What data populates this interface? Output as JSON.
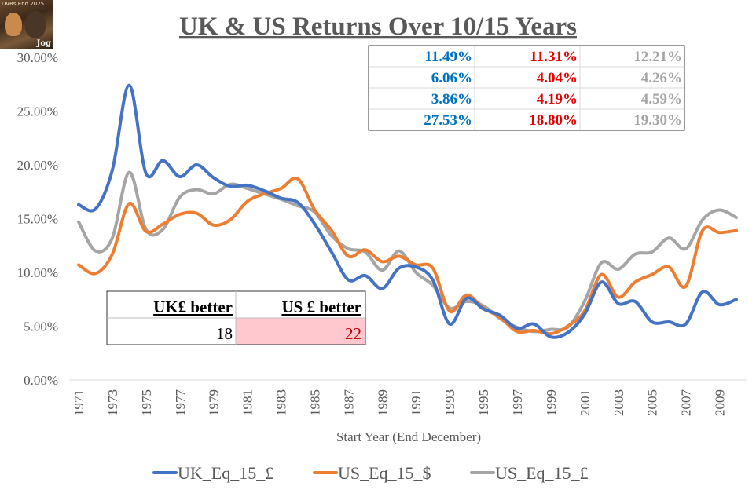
{
  "chart_data": {
    "type": "line",
    "title": "UK & US Returns Over 10/15 Years",
    "xlabel": "Start Year (End December)",
    "ylabel": "",
    "ylim": [
      0,
      30
    ],
    "yticks": [
      "0.00%",
      "5.00%",
      "10.00%",
      "15.00%",
      "20.00%",
      "25.00%",
      "30.00%"
    ],
    "x_tick_labels": [
      "1971",
      "1973",
      "1975",
      "1977",
      "1979",
      "1981",
      "1983",
      "1985",
      "1987",
      "1989",
      "1991",
      "1993",
      "1995",
      "1997",
      "1999",
      "2001",
      "2003",
      "2005",
      "2007",
      "2009"
    ],
    "x": [
      1971,
      1972,
      1973,
      1974,
      1975,
      1976,
      1977,
      1978,
      1979,
      1980,
      1981,
      1982,
      1983,
      1984,
      1985,
      1986,
      1987,
      1988,
      1989,
      1990,
      1991,
      1992,
      1993,
      1994,
      1995,
      1996,
      1997,
      1998,
      1999,
      2000,
      2001,
      2002,
      2003,
      2004,
      2005,
      2006,
      2007,
      2008,
      2009,
      2010
    ],
    "grid": false,
    "legend_position": "bottom",
    "series": [
      {
        "name": "UK_Eq_15_£",
        "color": "#4472C4",
        "values": [
          16.3,
          15.9,
          19.5,
          27.4,
          19.2,
          20.4,
          18.9,
          20.0,
          18.8,
          18.0,
          18.1,
          17.6,
          16.9,
          16.5,
          14.5,
          11.9,
          9.3,
          9.7,
          8.5,
          10.4,
          10.5,
          9.3,
          5.2,
          7.6,
          6.6,
          6.0,
          4.8,
          5.2,
          4.0,
          4.4,
          6.1,
          9.1,
          7.1,
          7.3,
          5.4,
          5.4,
          5.2,
          8.2,
          7.0,
          7.5
        ]
      },
      {
        "name": "US_Eq_15_$",
        "color": "#ED7D31",
        "values": [
          10.7,
          9.9,
          11.7,
          16.4,
          13.8,
          14.5,
          15.4,
          15.5,
          14.4,
          14.9,
          16.6,
          17.3,
          17.8,
          18.7,
          15.8,
          13.9,
          11.5,
          12.1,
          11.0,
          11.5,
          10.7,
          10.4,
          6.4,
          7.9,
          6.7,
          5.8,
          4.5,
          4.6,
          4.3,
          5.0,
          6.4,
          9.8,
          7.7,
          9.1,
          9.8,
          10.5,
          8.7,
          13.9,
          13.7,
          13.9
        ]
      },
      {
        "name": "US_Eq_15_£",
        "color": "#A5A5A5",
        "values": [
          14.7,
          12.0,
          13.2,
          19.3,
          14.0,
          14.0,
          17.0,
          17.7,
          17.3,
          18.2,
          17.8,
          17.3,
          16.8,
          16.2,
          15.6,
          13.4,
          12.2,
          11.9,
          10.2,
          12.0,
          10.0,
          8.8,
          6.7,
          7.3,
          6.9,
          5.7,
          4.9,
          4.5,
          4.7,
          4.9,
          7.3,
          10.9,
          10.3,
          11.7,
          11.9,
          13.2,
          12.2,
          14.9,
          15.8,
          15.1
        ]
      }
    ]
  },
  "stats_table": {
    "rows": [
      [
        "11.49%",
        "11.31%",
        "12.21%"
      ],
      [
        "6.06%",
        "4.04%",
        "4.26%"
      ],
      [
        "3.86%",
        "4.19%",
        "4.59%"
      ],
      [
        "27.53%",
        "18.80%",
        "19.30%"
      ]
    ],
    "colors": [
      "#0070C0",
      "#E60000",
      "#A5A5A5"
    ]
  },
  "comparison": {
    "uk_header": "UK£ better",
    "us_header": "US £ better",
    "uk_value": "18",
    "us_value": "22",
    "us_highlight": "#FFC7CE",
    "us_value_color": "#C00000"
  },
  "logo": {
    "caption": "DVRs End 2025",
    "signature": "Jog"
  }
}
